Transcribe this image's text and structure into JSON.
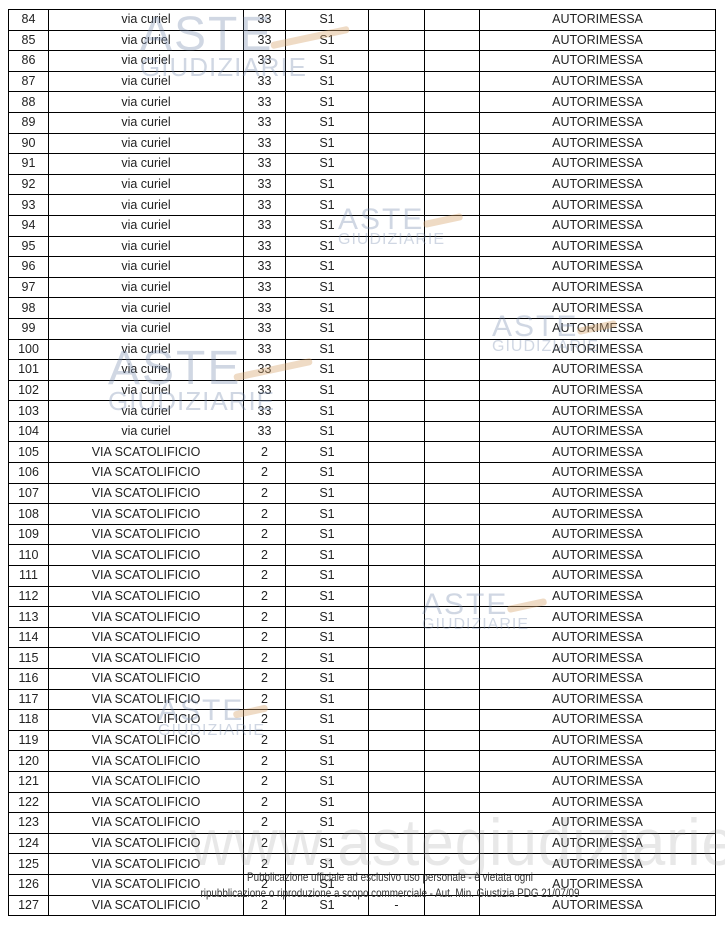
{
  "table": {
    "rows": [
      [
        "84",
        "via curiel",
        "33",
        "S1",
        "",
        "",
        "AUTORIMESSA"
      ],
      [
        "85",
        "via curiel",
        "33",
        "S1",
        "",
        "",
        "AUTORIMESSA"
      ],
      [
        "86",
        "via curiel",
        "33",
        "S1",
        "",
        "",
        "AUTORIMESSA"
      ],
      [
        "87",
        "via curiel",
        "33",
        "S1",
        "",
        "",
        "AUTORIMESSA"
      ],
      [
        "88",
        "via curiel",
        "33",
        "S1",
        "",
        "",
        "AUTORIMESSA"
      ],
      [
        "89",
        "via curiel",
        "33",
        "S1",
        "",
        "",
        "AUTORIMESSA"
      ],
      [
        "90",
        "via curiel",
        "33",
        "S1",
        "",
        "",
        "AUTORIMESSA"
      ],
      [
        "91",
        "via curiel",
        "33",
        "S1",
        "",
        "",
        "AUTORIMESSA"
      ],
      [
        "92",
        "via curiel",
        "33",
        "S1",
        "",
        "",
        "AUTORIMESSA"
      ],
      [
        "93",
        "via curiel",
        "33",
        "S1",
        "",
        "",
        "AUTORIMESSA"
      ],
      [
        "94",
        "via curiel",
        "33",
        "S1",
        "",
        "",
        "AUTORIMESSA"
      ],
      [
        "95",
        "via curiel",
        "33",
        "S1",
        "",
        "",
        "AUTORIMESSA"
      ],
      [
        "96",
        "via curiel",
        "33",
        "S1",
        "",
        "",
        "AUTORIMESSA"
      ],
      [
        "97",
        "via curiel",
        "33",
        "S1",
        "",
        "",
        "AUTORIMESSA"
      ],
      [
        "98",
        "via curiel",
        "33",
        "S1",
        "",
        "",
        "AUTORIMESSA"
      ],
      [
        "99",
        "via curiel",
        "33",
        "S1",
        "",
        "",
        "AUTORIMESSA"
      ],
      [
        "100",
        "via curiel",
        "33",
        "S1",
        "",
        "",
        "AUTORIMESSA"
      ],
      [
        "101",
        "via curiel",
        "33",
        "S1",
        "",
        "",
        "AUTORIMESSA"
      ],
      [
        "102",
        "via curiel",
        "33",
        "S1",
        "",
        "",
        "AUTORIMESSA"
      ],
      [
        "103",
        "via curiel",
        "33",
        "S1",
        "",
        "",
        "AUTORIMESSA"
      ],
      [
        "104",
        "via curiel",
        "33",
        "S1",
        "",
        "",
        "AUTORIMESSA"
      ],
      [
        "105",
        "VIA SCATOLIFICIO",
        "2",
        "S1",
        "",
        "",
        "AUTORIMESSA"
      ],
      [
        "106",
        "VIA SCATOLIFICIO",
        "2",
        "S1",
        "",
        "",
        "AUTORIMESSA"
      ],
      [
        "107",
        "VIA SCATOLIFICIO",
        "2",
        "S1",
        "",
        "",
        "AUTORIMESSA"
      ],
      [
        "108",
        "VIA SCATOLIFICIO",
        "2",
        "S1",
        "",
        "",
        "AUTORIMESSA"
      ],
      [
        "109",
        "VIA SCATOLIFICIO",
        "2",
        "S1",
        "",
        "",
        "AUTORIMESSA"
      ],
      [
        "110",
        "VIA SCATOLIFICIO",
        "2",
        "S1",
        "",
        "",
        "AUTORIMESSA"
      ],
      [
        "111",
        "VIA SCATOLIFICIO",
        "2",
        "S1",
        "",
        "",
        "AUTORIMESSA"
      ],
      [
        "112",
        "VIA SCATOLIFICIO",
        "2",
        "S1",
        "",
        "",
        "AUTORIMESSA"
      ],
      [
        "113",
        "VIA SCATOLIFICIO",
        "2",
        "S1",
        "",
        "",
        "AUTORIMESSA"
      ],
      [
        "114",
        "VIA SCATOLIFICIO",
        "2",
        "S1",
        "",
        "",
        "AUTORIMESSA"
      ],
      [
        "115",
        "VIA SCATOLIFICIO",
        "2",
        "S1",
        "",
        "",
        "AUTORIMESSA"
      ],
      [
        "116",
        "VIA SCATOLIFICIO",
        "2",
        "S1",
        "",
        "",
        "AUTORIMESSA"
      ],
      [
        "117",
        "VIA SCATOLIFICIO",
        "2",
        "S1",
        "",
        "",
        "AUTORIMESSA"
      ],
      [
        "118",
        "VIA SCATOLIFICIO",
        "2",
        "S1",
        "",
        "",
        "AUTORIMESSA"
      ],
      [
        "119",
        "VIA SCATOLIFICIO",
        "2",
        "S1",
        "",
        "",
        "AUTORIMESSA"
      ],
      [
        "120",
        "VIA SCATOLIFICIO",
        "2",
        "S1",
        "",
        "",
        "AUTORIMESSA"
      ],
      [
        "121",
        "VIA SCATOLIFICIO",
        "2",
        "S1",
        "",
        "",
        "AUTORIMESSA"
      ],
      [
        "122",
        "VIA SCATOLIFICIO",
        "2",
        "S1",
        "",
        "",
        "AUTORIMESSA"
      ],
      [
        "123",
        "VIA SCATOLIFICIO",
        "2",
        "S1",
        "",
        "",
        "AUTORIMESSA"
      ],
      [
        "124",
        "VIA SCATOLIFICIO",
        "2",
        "S1",
        "",
        "",
        "AUTORIMESSA"
      ],
      [
        "125",
        "VIA SCATOLIFICIO",
        "2",
        "S1",
        "",
        "",
        "AUTORIMESSA"
      ],
      [
        "126",
        "VIA SCATOLIFICIO",
        "2",
        "S1",
        "",
        "",
        "AUTORIMESSA"
      ],
      [
        "127",
        "VIA SCATOLIFICIO",
        "2",
        "S1",
        "-",
        "",
        "AUTORIMESSA"
      ]
    ]
  },
  "watermark": {
    "logo_top": "ASTE",
    "logo_bottom": "GIUDIZIARIE",
    "site": "www.astegiudiziarie.it"
  },
  "footer": {
    "line1": "Pubblicazione ufficiale ad esclusivo uso personale - è vietata ogni",
    "line2": "ripubblicazione o riproduzione a scopo commerciale - Aut. Min. Giustizia PDG 21/07/09"
  }
}
